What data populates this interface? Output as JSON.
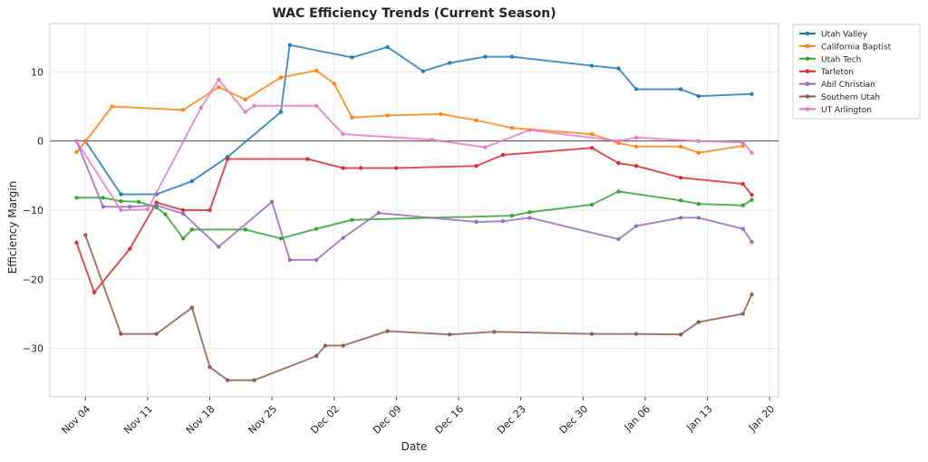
{
  "chart_data": {
    "type": "line",
    "title": "WAC Efficiency Trends (Current Season)",
    "xlabel": "Date",
    "ylabel": "Efficiency Margin",
    "x_ticks": [
      "Nov 04",
      "Nov 11",
      "Nov 18",
      "Nov 25",
      "Dec 02",
      "Dec 09",
      "Dec 16",
      "Dec 23",
      "Dec 30",
      "Jan 06",
      "Jan 13",
      "Jan 20"
    ],
    "y_ticks": [
      "−30",
      "−20",
      "−10",
      "0",
      "10"
    ],
    "xlim": [
      "2024-10-31",
      "2025-01-21"
    ],
    "ylim": [
      -37,
      17
    ],
    "grid": true,
    "zero_line": true,
    "legend_position": "outside-top-right",
    "series": [
      {
        "name": "Utah Valley",
        "color": "#1f77b4",
        "points": [
          [
            "2024-11-04",
            0
          ],
          [
            "2024-11-08",
            -7.7
          ],
          [
            "2024-11-12",
            -7.7
          ],
          [
            "2024-11-16",
            -5.8
          ],
          [
            "2024-11-20",
            -2.3
          ],
          [
            "2024-11-26",
            4.2
          ],
          [
            "2024-11-27",
            13.9
          ],
          [
            "2024-12-04",
            12.1
          ],
          [
            "2024-12-08",
            13.6
          ],
          [
            "2024-12-12",
            10.1
          ],
          [
            "2024-12-15",
            11.3
          ],
          [
            "2024-12-19",
            12.2
          ],
          [
            "2024-12-22",
            12.2
          ],
          [
            "2024-12-31",
            10.9
          ],
          [
            "2025-01-03",
            10.5
          ],
          [
            "2025-01-05",
            7.5
          ],
          [
            "2025-01-10",
            7.5
          ],
          [
            "2025-01-12",
            6.5
          ],
          [
            "2025-01-18",
            6.8
          ]
        ]
      },
      {
        "name": "California Baptist",
        "color": "#ff7f0e",
        "points": [
          [
            "2024-11-03",
            -1.6
          ],
          [
            "2024-11-04",
            -0.1
          ],
          [
            "2024-11-07",
            5.0
          ],
          [
            "2024-11-15",
            4.5
          ],
          [
            "2024-11-19",
            7.8
          ],
          [
            "2024-11-22",
            6.0
          ],
          [
            "2024-11-26",
            9.2
          ],
          [
            "2024-11-30",
            10.2
          ],
          [
            "2024-12-02",
            8.3
          ],
          [
            "2024-12-04",
            3.4
          ],
          [
            "2024-12-08",
            3.7
          ],
          [
            "2024-12-14",
            3.9
          ],
          [
            "2024-12-18",
            3.0
          ],
          [
            "2024-12-22",
            1.9
          ],
          [
            "2024-12-31",
            1.0
          ],
          [
            "2025-01-03",
            -0.3
          ],
          [
            "2025-01-05",
            -0.8
          ],
          [
            "2025-01-10",
            -0.8
          ],
          [
            "2025-01-12",
            -1.7
          ],
          [
            "2025-01-17",
            -0.7
          ]
        ]
      },
      {
        "name": "Utah Tech",
        "color": "#2ca02c",
        "points": [
          [
            "2024-11-03",
            -8.2
          ],
          [
            "2024-11-06",
            -8.2
          ],
          [
            "2024-11-08",
            -8.7
          ],
          [
            "2024-11-10",
            -8.8
          ],
          [
            "2024-11-12",
            -9.6
          ],
          [
            "2024-11-13",
            -10.6
          ],
          [
            "2024-11-15",
            -14.1
          ],
          [
            "2024-11-16",
            -12.8
          ],
          [
            "2024-11-22",
            -12.8
          ],
          [
            "2024-11-26",
            -14.1
          ],
          [
            "2024-11-30",
            -12.7
          ],
          [
            "2024-12-04",
            -11.4
          ],
          [
            "2024-12-22",
            -10.8
          ],
          [
            "2024-12-24",
            -10.3
          ],
          [
            "2024-12-31",
            -9.2
          ],
          [
            "2025-01-03",
            -7.3
          ],
          [
            "2025-01-10",
            -8.6
          ],
          [
            "2025-01-12",
            -9.1
          ],
          [
            "2025-01-17",
            -9.3
          ],
          [
            "2025-01-18",
            -8.5
          ]
        ]
      },
      {
        "name": "Tarleton",
        "color": "#d62728",
        "points": [
          [
            "2024-11-03",
            -14.7
          ],
          [
            "2024-11-05",
            -21.9
          ],
          [
            "2024-11-09",
            -15.6
          ],
          [
            "2024-11-12",
            -8.9
          ],
          [
            "2024-11-15",
            -10.0
          ],
          [
            "2024-11-18",
            -10.0
          ],
          [
            "2024-11-20",
            -2.6
          ],
          [
            "2024-11-29",
            -2.6
          ],
          [
            "2024-12-03",
            -3.9
          ],
          [
            "2024-12-05",
            -3.9
          ],
          [
            "2024-12-09",
            -3.9
          ],
          [
            "2024-12-18",
            -3.6
          ],
          [
            "2024-12-21",
            -2.0
          ],
          [
            "2024-12-31",
            -1.0
          ],
          [
            "2025-01-03",
            -3.2
          ],
          [
            "2025-01-05",
            -3.6
          ],
          [
            "2025-01-10",
            -5.3
          ],
          [
            "2025-01-17",
            -6.2
          ],
          [
            "2025-01-18",
            -7.8
          ]
        ]
      },
      {
        "name": "Abil Christian",
        "color": "#9467bd",
        "points": [
          [
            "2024-11-03",
            0
          ],
          [
            "2024-11-06",
            -9.5
          ],
          [
            "2024-11-09",
            -9.5
          ],
          [
            "2024-11-12",
            -9.3
          ],
          [
            "2024-11-15",
            -10.5
          ],
          [
            "2024-11-19",
            -15.3
          ],
          [
            "2024-11-25",
            -8.8
          ],
          [
            "2024-11-27",
            -17.2
          ],
          [
            "2024-11-30",
            -17.2
          ],
          [
            "2024-12-03",
            -14.0
          ],
          [
            "2024-12-07",
            -10.4
          ],
          [
            "2024-12-18",
            -11.7
          ],
          [
            "2024-12-21",
            -11.6
          ],
          [
            "2024-12-24",
            -11.1
          ],
          [
            "2025-01-03",
            -14.2
          ],
          [
            "2025-01-05",
            -12.3
          ],
          [
            "2025-01-10",
            -11.1
          ],
          [
            "2025-01-12",
            -11.1
          ],
          [
            "2025-01-17",
            -12.7
          ],
          [
            "2025-01-18",
            -14.6
          ]
        ]
      },
      {
        "name": "Southern Utah",
        "color": "#8c564b",
        "points": [
          [
            "2024-11-04",
            -13.6
          ],
          [
            "2024-11-08",
            -27.9
          ],
          [
            "2024-11-12",
            -27.9
          ],
          [
            "2024-11-16",
            -24.1
          ],
          [
            "2024-11-18",
            -32.7
          ],
          [
            "2024-11-20",
            -34.6
          ],
          [
            "2024-11-23",
            -34.6
          ],
          [
            "2024-11-30",
            -31.1
          ],
          [
            "2024-12-01",
            -29.6
          ],
          [
            "2024-12-03",
            -29.6
          ],
          [
            "2024-12-08",
            -27.5
          ],
          [
            "2024-12-15",
            -28.0
          ],
          [
            "2024-12-20",
            -27.6
          ],
          [
            "2024-12-31",
            -27.9
          ],
          [
            "2025-01-05",
            -27.9
          ],
          [
            "2025-01-10",
            -28.0
          ],
          [
            "2025-01-12",
            -26.2
          ],
          [
            "2025-01-17",
            -25.0
          ],
          [
            "2025-01-18",
            -22.2
          ]
        ]
      },
      {
        "name": "UT Arlington",
        "color": "#e377c2",
        "points": [
          [
            "2024-11-03",
            0
          ],
          [
            "2024-11-08",
            -10.0
          ],
          [
            "2024-11-11",
            -9.9
          ],
          [
            "2024-11-17",
            4.8
          ],
          [
            "2024-11-19",
            8.9
          ],
          [
            "2024-11-22",
            4.2
          ],
          [
            "2024-11-23",
            5.1
          ],
          [
            "2024-11-30",
            5.1
          ],
          [
            "2024-12-03",
            1.0
          ],
          [
            "2024-12-13",
            0.2
          ],
          [
            "2024-12-19",
            -0.9
          ],
          [
            "2024-12-24",
            1.6
          ],
          [
            "2025-01-03",
            0
          ],
          [
            "2025-01-05",
            0.5
          ],
          [
            "2025-01-12",
            0
          ],
          [
            "2025-01-17",
            -0.2
          ],
          [
            "2025-01-18",
            -1.7
          ]
        ]
      }
    ]
  }
}
